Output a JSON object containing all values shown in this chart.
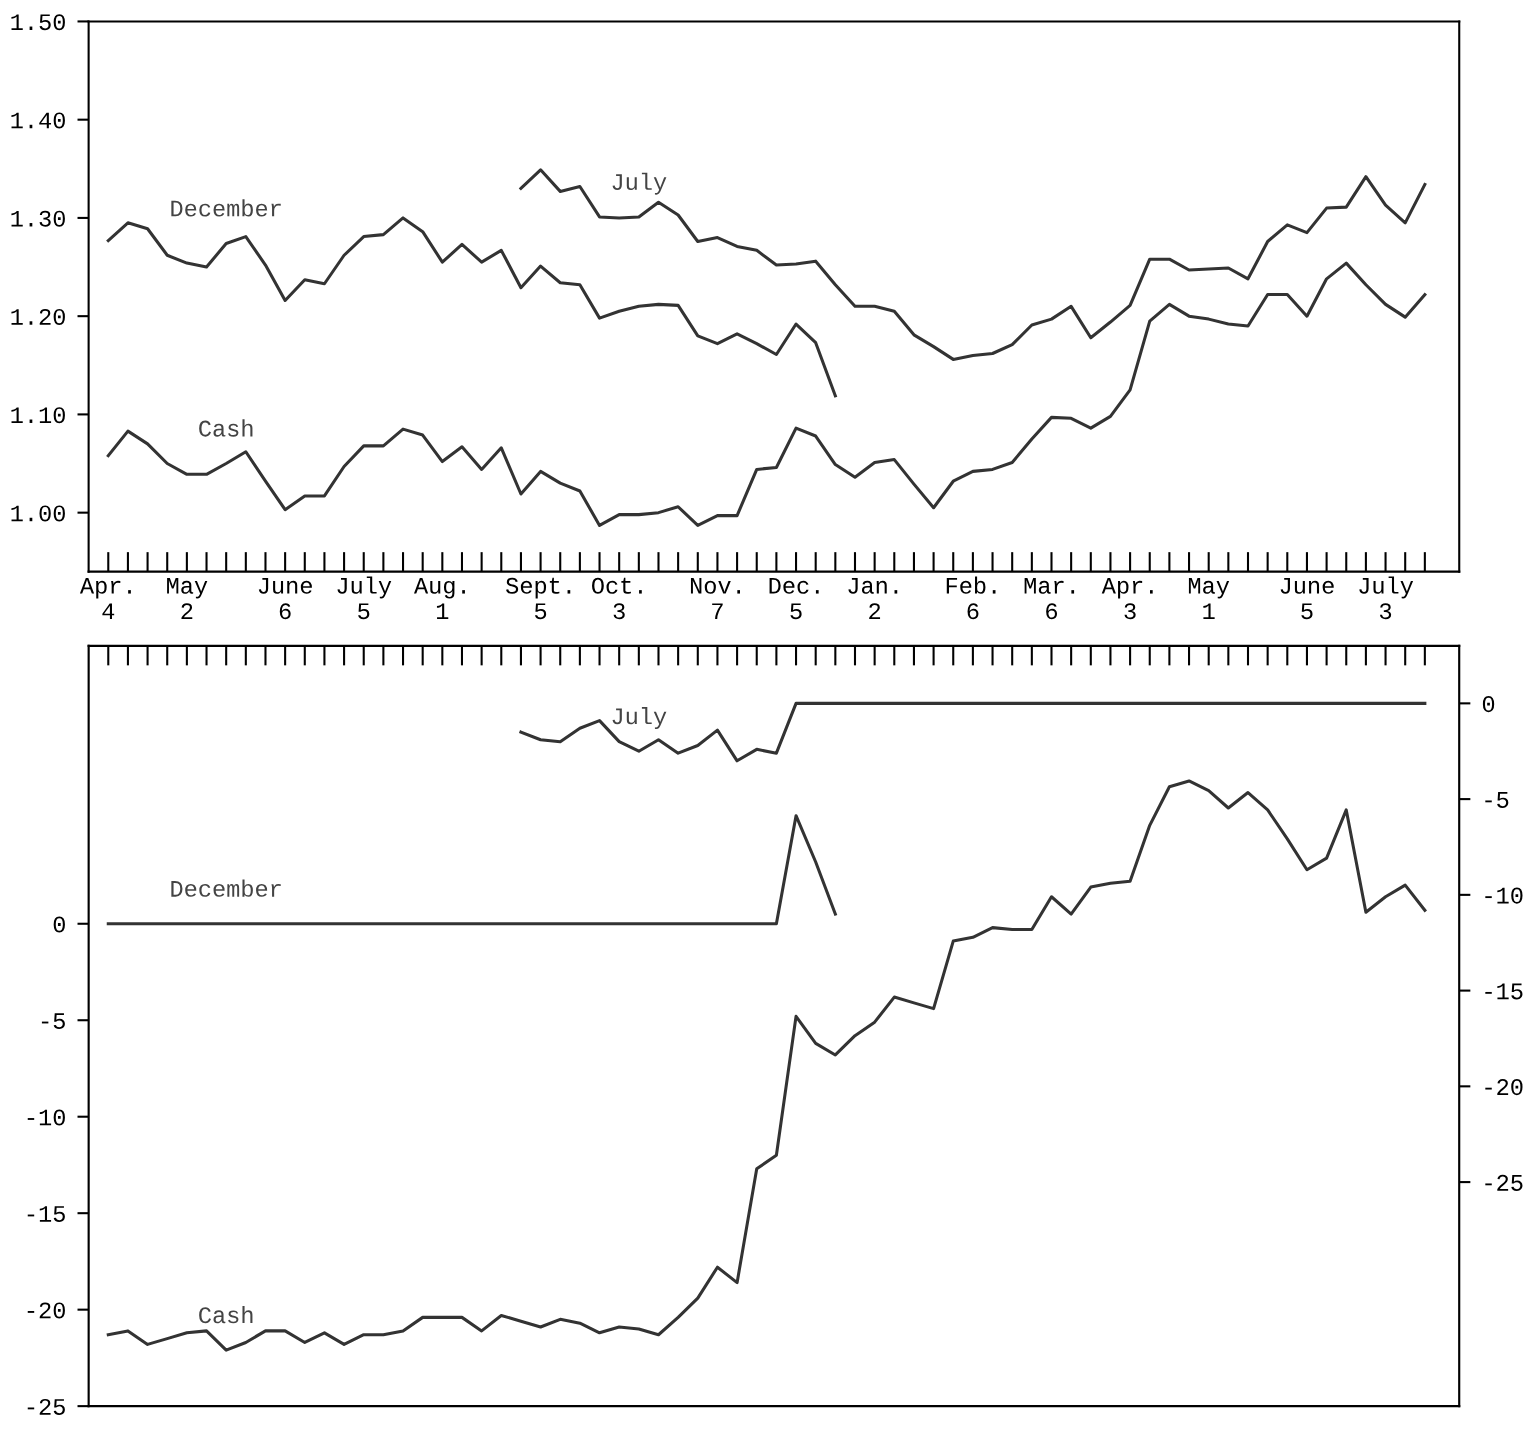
{
  "chart_data": [
    {
      "type": "line",
      "categories": [
        "Apr.\n4",
        null,
        null,
        null,
        "May\n2",
        null,
        null,
        null,
        null,
        "June\n6",
        null,
        null,
        null,
        "July\n5",
        null,
        null,
        null,
        "Aug.\n1",
        null,
        null,
        null,
        null,
        "Sept.\n5",
        null,
        null,
        null,
        "Oct.\n3",
        null,
        null,
        null,
        null,
        "Nov.\n7",
        null,
        null,
        null,
        "Dec.\n5",
        null,
        null,
        null,
        "Jan.\n2",
        null,
        null,
        null,
        null,
        "Feb.\n6",
        null,
        null,
        null,
        "Mar.\n6",
        null,
        null,
        null,
        "Apr.\n3",
        null,
        null,
        null,
        "May\n1",
        null,
        null,
        null,
        null,
        "June\n5",
        null,
        null,
        null,
        "July\n3",
        null,
        null
      ],
      "ylim": [
        0.94,
        1.5
      ],
      "yticks": [
        {
          "value": 1.0,
          "label": "1.00"
        },
        {
          "value": 1.1,
          "label": "1.10"
        },
        {
          "value": 1.2,
          "label": "1.20"
        },
        {
          "value": 1.3,
          "label": "1.30"
        },
        {
          "value": 1.4,
          "label": "1.40"
        },
        {
          "value": 1.5,
          "label": "1.50"
        }
      ],
      "grid": false,
      "legend": false,
      "marker": "none",
      "line_style": "solid",
      "series": [
        {
          "name": "December",
          "color": "#333333",
          "values": [
            1.277,
            1.295,
            1.289,
            1.262,
            1.254,
            1.25,
            1.274,
            1.281,
            1.252,
            1.216,
            1.237,
            1.233,
            1.262,
            1.281,
            1.283,
            1.3,
            1.286,
            1.255,
            1.273,
            1.255,
            1.267,
            1.229,
            1.251,
            1.234,
            1.232,
            1.198,
            1.205,
            1.21,
            1.212,
            1.211,
            1.18,
            1.172,
            1.182,
            1.172,
            1.161,
            1.192,
            1.173,
            1.119,
            null,
            null,
            null,
            null,
            null,
            null,
            null,
            null,
            null,
            null,
            null,
            null,
            null,
            null,
            null,
            null,
            null,
            null,
            null,
            null,
            null,
            null,
            null,
            null,
            null,
            null,
            null,
            null,
            null,
            null
          ]
        },
        {
          "name": "July",
          "color": "#333333",
          "values": [
            null,
            null,
            null,
            null,
            null,
            null,
            null,
            null,
            null,
            null,
            null,
            null,
            null,
            null,
            null,
            null,
            null,
            null,
            null,
            null,
            null,
            1.33,
            1.349,
            1.327,
            1.332,
            1.301,
            1.3,
            1.301,
            1.316,
            1.303,
            1.276,
            1.28,
            1.271,
            1.267,
            1.252,
            1.253,
            1.256,
            1.232,
            1.21,
            1.21,
            1.205,
            1.181,
            1.169,
            1.156,
            1.16,
            1.162,
            1.171,
            1.191,
            1.197,
            1.21,
            1.178,
            1.194,
            1.211,
            1.258,
            1.258,
            1.247,
            1.248,
            1.249,
            1.238,
            1.276,
            1.293,
            1.285,
            1.31,
            1.311,
            1.342,
            1.313,
            1.295,
            1.334
          ]
        },
        {
          "name": "Cash",
          "color": "#333333",
          "values": [
            1.058,
            1.083,
            1.07,
            1.05,
            1.039,
            1.039,
            1.05,
            1.062,
            1.032,
            1.003,
            1.017,
            1.017,
            1.047,
            1.068,
            1.068,
            1.085,
            1.079,
            1.052,
            1.067,
            1.044,
            1.066,
            1.019,
            1.042,
            1.03,
            1.022,
            0.987,
            0.998,
            0.998,
            1.0,
            1.006,
            0.987,
            0.997,
            0.997,
            1.044,
            1.046,
            1.086,
            1.078,
            1.049,
            1.036,
            1.051,
            1.054,
            1.029,
            1.005,
            1.032,
            1.042,
            1.044,
            1.051,
            1.075,
            1.097,
            1.096,
            1.086,
            1.098,
            1.125,
            1.195,
            1.212,
            1.2,
            1.197,
            1.192,
            1.19,
            1.222,
            1.222,
            1.2,
            1.238,
            1.254,
            1.232,
            1.212,
            1.199,
            1.222
          ]
        }
      ]
    },
    {
      "type": "line",
      "categories": [
        null,
        null,
        null,
        null,
        null,
        null,
        null,
        null,
        null,
        null,
        null,
        null,
        null,
        null,
        null,
        null,
        null,
        null,
        null,
        null,
        null,
        null,
        null,
        null,
        null,
        null,
        null,
        null,
        null,
        null,
        null,
        null,
        null,
        null,
        null,
        null,
        null,
        null,
        null,
        null,
        null,
        null,
        null,
        null,
        null,
        null,
        null,
        null,
        null,
        null,
        null,
        null,
        null,
        null,
        null,
        null,
        null,
        null,
        null,
        null,
        null,
        null,
        null,
        null,
        null,
        null,
        null,
        null
      ],
      "tick_labels": "y",
      "ylim": [
        -25,
        14.4
      ],
      "yticks": [
        0,
        -5,
        -10,
        -15,
        -20,
        -25
      ],
      "y2lim": [
        -36.7,
        3.0
      ],
      "y2ticks": [
        0,
        -5,
        -10,
        -15,
        -20,
        -25
      ],
      "grid": false,
      "legend": false,
      "marker": "none",
      "line_style": "solid",
      "series": [
        {
          "name": "July",
          "color": "#333333",
          "axis": "y2",
          "values": [
            null,
            null,
            null,
            null,
            null,
            null,
            null,
            null,
            null,
            null,
            null,
            null,
            null,
            null,
            null,
            null,
            null,
            null,
            null,
            null,
            null,
            -1.5,
            -1.9,
            -2.0,
            -1.3,
            -0.9,
            -2.0,
            -2.5,
            -1.9,
            -2.6,
            -2.2,
            -1.4,
            -3.0,
            -2.4,
            -2.6,
            0,
            0,
            0,
            0,
            0,
            0,
            0,
            0,
            0,
            0,
            0,
            0,
            0,
            0,
            0,
            0,
            0,
            0,
            0,
            0,
            0,
            0,
            0,
            0,
            0,
            0,
            0,
            0,
            0,
            0,
            0,
            0,
            0
          ]
        },
        {
          "name": "December",
          "color": "#333333",
          "values": [
            0,
            0,
            0,
            0,
            0,
            0,
            0,
            0,
            0,
            0,
            0,
            0,
            0,
            0,
            0,
            0,
            0,
            0,
            0,
            0,
            0,
            0,
            0,
            0,
            0,
            0,
            0,
            0,
            0,
            0,
            0,
            0,
            0,
            0,
            0,
            5.6,
            3.2,
            0.5,
            null,
            null,
            null,
            null,
            null,
            null,
            null,
            null,
            null,
            null,
            null,
            null,
            null,
            null,
            null,
            null,
            null,
            null,
            null,
            null,
            null,
            null,
            null,
            null,
            null,
            null,
            null,
            null,
            null,
            null
          ]
        },
        {
          "name": "Cash",
          "color": "#333333",
          "values": [
            -21.3,
            -21.1,
            -21.8,
            -21.5,
            -21.2,
            -21.1,
            -22.1,
            -21.7,
            -21.1,
            -21.1,
            -21.7,
            -21.2,
            -21.8,
            -21.3,
            -21.3,
            -21.1,
            -20.4,
            -20.4,
            -20.4,
            -21.1,
            -20.3,
            -20.6,
            -20.9,
            -20.5,
            -20.7,
            -21.2,
            -20.9,
            -21.0,
            -21.3,
            -20.4,
            -19.4,
            -17.8,
            -18.6,
            -12.7,
            -12.0,
            -4.8,
            -6.2,
            -6.8,
            -5.8,
            -5.1,
            -3.8,
            -4.1,
            -4.4,
            -0.9,
            -0.7,
            -0.2,
            -0.3,
            -0.3,
            1.4,
            0.5,
            1.9,
            2.1,
            2.2,
            5.1,
            7.1,
            7.4,
            6.9,
            6.0,
            6.8,
            5.9,
            4.4,
            2.8,
            3.4,
            5.9,
            0.6,
            1.4,
            2.0,
            0.7
          ]
        }
      ]
    }
  ]
}
